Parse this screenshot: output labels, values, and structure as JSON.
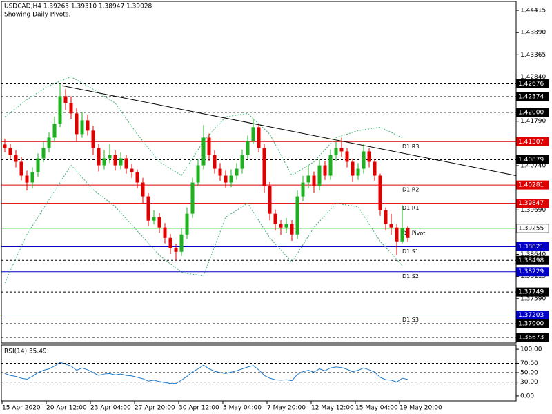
{
  "header": {
    "title": "USDCAD,H4  1.39265 1.39310 1.38947 1.39028",
    "subtitle": "Showing Daily Pivots."
  },
  "chart_data": [
    {
      "type": "candlestick",
      "categories": [
        "15 Apr 2020",
        null,
        null,
        null,
        null,
        null,
        null,
        null,
        "20 Apr 12:00",
        null,
        null,
        null,
        null,
        null,
        null,
        null,
        "23 Apr 04:00",
        null,
        null,
        null,
        null,
        null,
        null,
        null,
        "27 Apr 20:00",
        null,
        null,
        null,
        null,
        null,
        null,
        null,
        "30 Apr 12:00",
        null,
        null,
        null,
        null,
        null,
        null,
        null,
        "5 May 04:00",
        null,
        null,
        null,
        null,
        null,
        null,
        null,
        "7 May 20:00",
        null,
        null,
        null,
        null,
        null,
        null,
        null,
        "12 May 12:00",
        null,
        null,
        null,
        null,
        null,
        null,
        null,
        "15 May 04:00",
        null,
        null,
        null,
        null,
        null,
        null,
        null,
        "19 May 20:00",
        null
      ],
      "open": [
        1.4124,
        1.41157,
        1.40994,
        1.4083,
        1.40503,
        1.40339,
        1.40584,
        1.40912,
        1.41157,
        1.41403,
        1.4173,
        1.42385,
        1.42221,
        1.41976,
        1.41485,
        1.41812,
        1.41567,
        1.41157,
        1.40748,
        1.40912,
        1.40994,
        1.40748,
        1.40912,
        1.40666,
        1.40584,
        1.40339,
        1.40012,
        1.39439,
        1.3952,
        1.39275,
        1.39029,
        1.38784,
        1.38702,
        1.39111,
        1.39602,
        1.40339,
        1.40748,
        1.41403,
        1.40994,
        1.40666,
        1.40503,
        1.40339,
        1.40503,
        1.40666,
        1.40994,
        1.41321,
        1.41649,
        1.41157,
        1.40257,
        1.39602,
        1.39357,
        1.39275,
        1.39357,
        1.39111,
        1.40012,
        1.40339,
        1.40503,
        1.40257,
        1.40748,
        1.40503,
        1.40994,
        1.41157,
        1.41076,
        1.4083,
        1.40503,
        1.40666,
        1.41076,
        1.4083,
        1.40503,
        1.39684,
        1.39357,
        1.39275,
        1.38947,
        1.39265
      ],
      "high": [
        1.4138,
        1.4126,
        1.411,
        1.4095,
        1.4062,
        1.407,
        1.4103,
        1.413,
        1.4152,
        1.419,
        1.42675,
        1.4255,
        1.4238,
        1.421,
        1.42,
        1.4195,
        1.4168,
        1.4125,
        1.411,
        1.4125,
        1.411,
        1.4105,
        1.41,
        1.4078,
        1.4065,
        1.4045,
        1.401,
        1.3968,
        1.3962,
        1.3938,
        1.3912,
        1.3888,
        1.3925,
        1.3975,
        1.4045,
        1.409,
        1.417,
        1.415,
        1.411,
        1.408,
        1.4062,
        1.4065,
        1.408,
        1.4112,
        1.4145,
        1.4185,
        1.4172,
        1.4125,
        1.4035,
        1.397,
        1.3945,
        1.395,
        1.3945,
        1.4015,
        1.405,
        1.4075,
        1.406,
        1.409,
        1.4085,
        1.4112,
        1.413,
        1.414,
        1.4115,
        1.409,
        1.408,
        1.4125,
        1.4115,
        1.409,
        1.4055,
        1.3975,
        1.396,
        1.3935,
        1.398,
        1.3931
      ],
      "low": [
        1.4105,
        1.4088,
        1.407,
        1.4039,
        1.4015,
        1.402,
        1.4048,
        1.4082,
        1.4105,
        1.413,
        1.4165,
        1.4205,
        1.4185,
        1.413,
        1.414,
        1.4145,
        1.41,
        1.406,
        1.4065,
        1.408,
        1.4062,
        1.4065,
        1.4055,
        1.4045,
        1.402,
        1.3985,
        1.393,
        1.3935,
        1.3915,
        1.389,
        1.3865,
        1.38502,
        1.386,
        1.39,
        1.395,
        1.4025,
        1.4065,
        1.4085,
        1.4055,
        1.4038,
        1.4022,
        1.4023,
        1.404,
        1.4055,
        1.409,
        1.4125,
        1.4105,
        1.401,
        1.3945,
        1.392,
        1.391,
        1.3915,
        1.3896,
        1.39,
        1.399,
        1.402,
        1.401,
        1.4015,
        1.404,
        1.404,
        1.4085,
        1.4095,
        1.407,
        1.4035,
        1.404,
        1.4055,
        1.407,
        1.4038,
        1.3955,
        1.392,
        1.391,
        1.3862,
        1.389,
        1.38947
      ],
      "close": [
        1.41157,
        1.40994,
        1.4083,
        1.40503,
        1.40339,
        1.40584,
        1.40912,
        1.41157,
        1.41403,
        1.4173,
        1.42385,
        1.42221,
        1.41976,
        1.41485,
        1.41812,
        1.41567,
        1.41157,
        1.40748,
        1.40912,
        1.40994,
        1.40748,
        1.40912,
        1.40666,
        1.40584,
        1.40339,
        1.40012,
        1.39439,
        1.3952,
        1.39275,
        1.39029,
        1.38784,
        1.38702,
        1.39111,
        1.39602,
        1.40339,
        1.40748,
        1.41403,
        1.40994,
        1.40666,
        1.40503,
        1.40339,
        1.40503,
        1.40666,
        1.40994,
        1.41321,
        1.41649,
        1.41157,
        1.40257,
        1.39602,
        1.39357,
        1.39275,
        1.39357,
        1.39111,
        1.40012,
        1.40339,
        1.40503,
        1.40257,
        1.40748,
        1.40503,
        1.40994,
        1.41157,
        1.41076,
        1.4083,
        1.40503,
        1.40666,
        1.41076,
        1.4083,
        1.40503,
        1.39684,
        1.39357,
        1.39275,
        1.38947,
        1.39265,
        1.39028
      ],
      "up_color": "#1fb01f",
      "down_color": "#e00000",
      "ylim": [
        1.36542,
        1.44628
      ],
      "yticks": [
        1.44415,
        {
          "value": 1.4389,
          "label": "1.43890"
        },
        1.43365,
        {
          "value": 1.4284,
          "label": "1.42840"
        },
        {
          "value": 1.4179,
          "label": "1.41790"
        },
        {
          "value": 1.4074,
          "label": "1.40740"
        },
        {
          "value": 1.3969,
          "label": "1.39690"
        },
        {
          "value": 1.3864,
          "label": "1.38640"
        },
        1.38115,
        {
          "value": 1.3759,
          "label": "1.37590"
        }
      ],
      "bands": {
        "color": "#3cb371",
        "x": [
          0,
          4,
          8,
          12,
          16,
          20,
          24,
          28,
          32,
          36,
          40,
          44,
          48,
          52,
          56,
          60,
          64,
          68,
          72
        ],
        "upper": [
          1.41894,
          1.42303,
          1.42631,
          1.42843,
          1.42549,
          1.42221,
          1.41485,
          1.4083,
          1.40503,
          1.41321,
          1.41894,
          1.41976,
          1.41485,
          1.40503,
          1.4083,
          1.41403,
          1.41567,
          1.41649,
          1.41403
        ],
        "lower": [
          1.37965,
          1.39111,
          1.3993,
          1.40748,
          1.40175,
          1.39766,
          1.39193,
          1.3862,
          1.38211,
          1.38129,
          1.3952,
          1.39848,
          1.39029,
          1.38456,
          1.39275,
          1.39848,
          1.39766,
          1.38947,
          1.38375
        ]
      },
      "trendline": {
        "color": "#000000",
        "x": [
          10.4,
          92.6
        ],
        "y": [
          1.42631,
          1.40503
        ]
      },
      "levels": [
        {
          "value": 1.42676,
          "label": "1.42676",
          "color": "#000000",
          "style": "dashed",
          "tag_color": "#000000"
        },
        {
          "value": 1.42374,
          "label": "1.42374",
          "color": "#000000",
          "style": "dashed",
          "tag_color": "#000000"
        },
        {
          "value": 1.42,
          "label": "1.42000",
          "color": "#000000",
          "style": "dashed",
          "tag_color": "#000000"
        },
        {
          "value": 1.41307,
          "label": "1.41307",
          "color": "#e00000",
          "style": "solid",
          "tag_color": "#e00000",
          "name": "D1 R3"
        },
        {
          "value": 1.40879,
          "label": "1.40879",
          "color": "#000000",
          "style": "dashed",
          "tag_color": "#000000"
        },
        {
          "value": 1.40281,
          "label": "1.40281",
          "color": "#e00000",
          "style": "solid",
          "tag_color": "#e00000",
          "name": "D1 R2"
        },
        {
          "value": 1.39847,
          "label": "1.39847",
          "color": "#e00000",
          "style": "solid",
          "tag_color": "#e00000",
          "name": "D1 R1"
        },
        {
          "value": 1.39255,
          "label": "1.39255",
          "color": "#32cd32",
          "style": "solid",
          "tag_color": "#ffffff",
          "name": "D1 Pivot"
        },
        {
          "value": 1.38821,
          "label": "1.38821",
          "color": "#0000c8",
          "style": "solid",
          "tag_color": "#0000c8",
          "name": "D1 S1"
        },
        {
          "value": 1.38498,
          "label": "1.38498",
          "color": "#000000",
          "style": "dashed",
          "tag_color": "#000000"
        },
        {
          "value": 1.38229,
          "label": "1.38229",
          "color": "#0000c8",
          "style": "solid",
          "tag_color": "#0000c8",
          "name": "D1 S2"
        },
        {
          "value": 1.37749,
          "label": "1.37749",
          "color": "#000000",
          "style": "dashed",
          "tag_color": "#000000"
        },
        {
          "value": 1.37203,
          "label": "1.37203",
          "color": "#0000c8",
          "style": "solid",
          "tag_color": "#0000c8",
          "name": "D1 S3"
        },
        {
          "value": 1.37,
          "label": "1.37000",
          "color": "#000000",
          "style": "dashed",
          "tag_color": "#000000"
        },
        {
          "value": 1.36673,
          "label": "1.36673",
          "color": "#000000",
          "style": "dashed",
          "tag_color": "#000000"
        }
      ]
    },
    {
      "type": "line",
      "title": "RSI(14) 35.49",
      "color": "#1e78c8",
      "values": [
        48,
        44,
        42,
        38,
        36,
        42,
        50,
        55,
        58,
        64,
        72,
        68,
        64,
        55,
        60,
        56,
        50,
        44,
        47,
        48,
        45,
        47,
        44,
        43,
        40,
        37,
        32,
        34,
        31,
        29,
        27,
        27,
        34,
        42,
        52,
        58,
        66,
        58,
        53,
        50,
        48,
        51,
        54,
        58,
        62,
        65,
        56,
        44,
        38,
        35,
        34,
        35,
        33,
        46,
        52,
        55,
        51,
        58,
        54,
        60,
        62,
        61,
        57,
        52,
        55,
        60,
        56,
        51,
        40,
        35,
        34,
        30,
        38,
        35.49
      ],
      "ylim": [
        -10.4,
        109
      ],
      "yticks": [
        {
          "value": 100,
          "label": "100.00"
        },
        {
          "value": 70,
          "label": "70.00"
        },
        {
          "value": 50,
          "label": "50.00"
        },
        {
          "value": 30,
          "label": "30.00"
        },
        {
          "value": 0,
          "label": "0.00"
        }
      ],
      "levels": [
        70,
        50,
        30
      ]
    }
  ]
}
